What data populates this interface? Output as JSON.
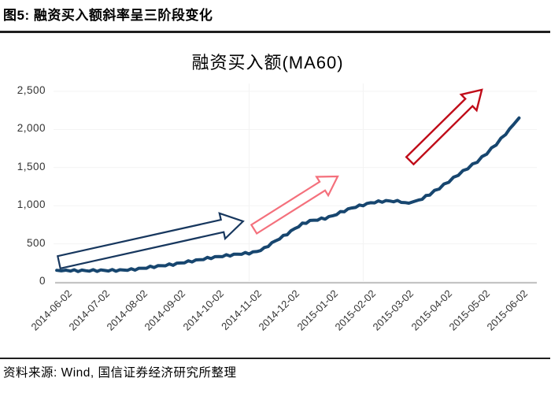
{
  "figure": {
    "caption": "图5: 融资买入额斜率呈三阶段变化",
    "source_note": "资料来源: Wind, 国信证券经济研究所整理"
  },
  "chart_data": {
    "type": "line",
    "title": "融资买入额(MA60)",
    "x_tick_labels": [
      "2014-06-02",
      "2014-07-02",
      "2014-08-02",
      "2014-09-02",
      "2014-10-02",
      "2014-11-02",
      "2014-12-02",
      "2015-01-02",
      "2015-02-02",
      "2015-03-02",
      "2015-04-02",
      "2015-05-02",
      "2015-06-02"
    ],
    "y_ticks": [
      0,
      500,
      1000,
      1500,
      2000,
      2500
    ],
    "y_tick_labels": [
      "0",
      "500",
      "1,000",
      "1,500",
      "2,000",
      "2,500"
    ],
    "ylim": [
      0,
      2500
    ],
    "legend": "none",
    "grid": {
      "h_lines_at": [
        500,
        1000,
        1500,
        2000,
        2500
      ],
      "v_lines_at_months": [
        5,
        8
      ],
      "style": "very-faint"
    },
    "series": [
      {
        "name": "融资买入额(MA60)",
        "color": "#17466f",
        "monthly_values_at_ticks": [
          150,
          150,
          170,
          230,
          320,
          378,
          630,
          835,
          1010,
          1055,
          1230,
          1580,
          2100
        ],
        "points": [
          [
            -0.06,
            150
          ],
          [
            0.3,
            149
          ],
          [
            0.7,
            148
          ],
          [
            1,
            150
          ],
          [
            1.3,
            151
          ],
          [
            1.6,
            153
          ],
          [
            1.9,
            162
          ],
          [
            2.1,
            172
          ],
          [
            2.4,
            195
          ],
          [
            2.7,
            213
          ],
          [
            3,
            230
          ],
          [
            3.3,
            258
          ],
          [
            3.6,
            282
          ],
          [
            3.9,
            310
          ],
          [
            4.2,
            332
          ],
          [
            4.5,
            352
          ],
          [
            4.8,
            370
          ],
          [
            5,
            378
          ],
          [
            5.2,
            398
          ],
          [
            5.4,
            440
          ],
          [
            5.6,
            510
          ],
          [
            5.8,
            570
          ],
          [
            6,
            630
          ],
          [
            6.2,
            700
          ],
          [
            6.4,
            760
          ],
          [
            6.6,
            800
          ],
          [
            6.8,
            818
          ],
          [
            7,
            835
          ],
          [
            7.2,
            868
          ],
          [
            7.4,
            912
          ],
          [
            7.6,
            952
          ],
          [
            7.8,
            985
          ],
          [
            8,
            1010
          ],
          [
            8.2,
            1038
          ],
          [
            8.4,
            1052
          ],
          [
            8.6,
            1062
          ],
          [
            8.8,
            1060
          ],
          [
            9,
            1055
          ],
          [
            9.1,
            1035
          ],
          [
            9.2,
            1032
          ],
          [
            9.35,
            1052
          ],
          [
            9.55,
            1092
          ],
          [
            9.75,
            1150
          ],
          [
            10,
            1230
          ],
          [
            10.25,
            1318
          ],
          [
            10.5,
            1408
          ],
          [
            10.75,
            1494
          ],
          [
            11,
            1580
          ],
          [
            11.25,
            1688
          ],
          [
            11.5,
            1808
          ],
          [
            11.75,
            1945
          ],
          [
            11.95,
            2060
          ],
          [
            12.1,
            2145
          ]
        ]
      }
    ],
    "annotations": {
      "arrows": [
        {
          "name": "stage-1-shallow-slope-arrow",
          "color": "#17375e",
          "from_month": 0.0,
          "from_value": 258,
          "to_month": 4.84,
          "to_value": 795
        },
        {
          "name": "stage-2-medium-slope-arrow",
          "color": "#f4707c",
          "from_month": 5.13,
          "from_value": 692,
          "to_month": 7.33,
          "to_value": 1384
        },
        {
          "name": "stage-3-steep-slope-arrow",
          "color": "#c00b18",
          "from_month": 9.23,
          "from_value": 1591,
          "to_month": 11.12,
          "to_value": 2521
        }
      ]
    },
    "colors": {
      "line": "#17466f",
      "stage1_arrow": "#17375e",
      "stage2_arrow": "#f4707c",
      "stage3_arrow": "#c00b18",
      "baseline": "#c4c4c4",
      "gridline": "#f3f3f3"
    }
  }
}
